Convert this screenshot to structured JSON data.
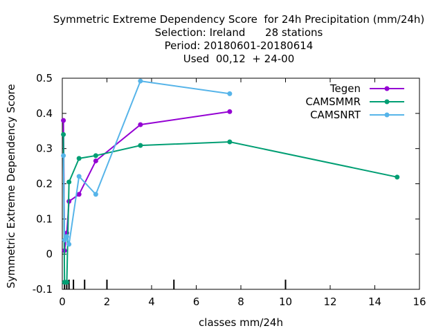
{
  "chart_data": {
    "type": "line",
    "title_lines": [
      "Symmetric Extreme Dependency Score  for 24h Precipitation (mm/24h)",
      "Selection: Ireland      28 stations",
      "Period: 20180601-20180614",
      "Used  00,12  + 24-00"
    ],
    "xlabel": "classes mm/24h",
    "ylabel": "Symmetric Extreme Dependency Score",
    "xlim": [
      0,
      16
    ],
    "ylim": [
      -0.1,
      0.5
    ],
    "x_ticks": [
      0,
      2,
      4,
      6,
      8,
      10,
      12,
      14,
      16
    ],
    "y_ticks": [
      -0.1,
      0,
      0.1,
      0.2,
      0.3,
      0.4,
      0.5
    ],
    "x_tick_labels": [
      "0",
      "2",
      "4",
      "6",
      "8",
      "10",
      "12",
      "14",
      "16"
    ],
    "y_tick_labels": [
      "-0.1",
      "0",
      "0.1",
      "0.2",
      "0.3",
      "0.4",
      "0.5"
    ],
    "class_markers": [
      0.1,
      0.2,
      0.3,
      0.5,
      1,
      2,
      5,
      10
    ],
    "legend_position": "top-right",
    "grid": false,
    "series": [
      {
        "name": "Tegen",
        "color": "#9400d3",
        "x": [
          0.05,
          0.1,
          0.2,
          0.3,
          0.75,
          1.5,
          3.5,
          7.5
        ],
        "y": [
          0.38,
          0.01,
          0.06,
          0.15,
          0.17,
          0.265,
          0.368,
          0.405
        ]
      },
      {
        "name": "CAMSMMR",
        "color": "#009e73",
        "x": [
          0.05,
          0.1,
          0.2,
          0.3,
          0.75,
          1.5,
          3.5,
          7.5,
          15
        ],
        "y": [
          0.34,
          -0.08,
          -0.08,
          0.205,
          0.272,
          0.28,
          0.309,
          0.319,
          0.219
        ]
      },
      {
        "name": "CAMSNRT",
        "color": "#56b4e9",
        "x": [
          0.05,
          0.1,
          0.2,
          0.3,
          0.75,
          1.5,
          3.5,
          7.5
        ],
        "y": [
          0.28,
          0.04,
          0.05,
          0.028,
          0.221,
          0.17,
          0.492,
          0.456
        ]
      }
    ]
  }
}
